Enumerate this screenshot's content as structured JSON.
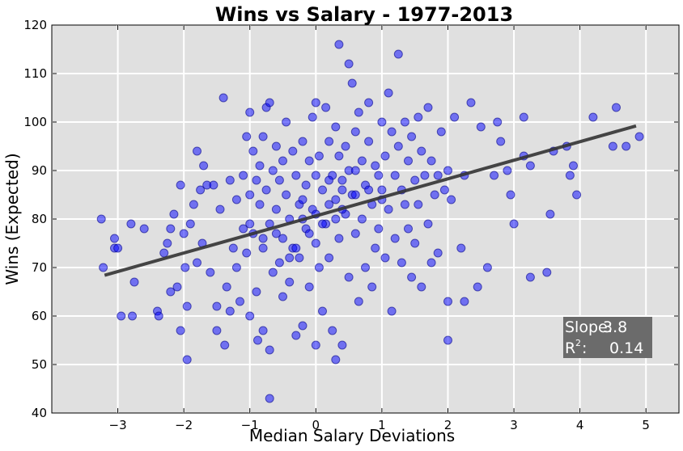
{
  "chart_data": {
    "type": "scatter",
    "title": "Wins vs Salary - 1977-2013",
    "xlabel": "Median Salary Deviations",
    "ylabel": "Wins (Expected)",
    "xlim": [
      -4,
      5.5
    ],
    "ylim": [
      40,
      120
    ],
    "xticks": [
      -3,
      -2,
      -1,
      0,
      1,
      2,
      3,
      4,
      5
    ],
    "yticks": [
      40,
      50,
      60,
      70,
      80,
      90,
      100,
      110,
      120
    ],
    "grid": true,
    "background": "#e0e0e0",
    "point_color": "#0000ff",
    "fit_color": "#333333",
    "annotation": {
      "slope_label": "Slope:",
      "slope_value": "3.8",
      "r2_label": "R",
      "r2_sup": "2",
      "r2_colon": ":",
      "r2_value": "0.14"
    },
    "fit_line": {
      "x": [
        -3.2,
        4.85
      ],
      "y": [
        68.4,
        99.2
      ]
    },
    "points": [
      [
        -3.25,
        80
      ],
      [
        -3.22,
        70
      ],
      [
        -3.05,
        76
      ],
      [
        -3.05,
        74
      ],
      [
        -3.0,
        74
      ],
      [
        -2.95,
        60
      ],
      [
        -2.8,
        79
      ],
      [
        -2.78,
        60
      ],
      [
        -2.75,
        67
      ],
      [
        -2.6,
        78
      ],
      [
        -2.4,
        61
      ],
      [
        -2.38,
        60
      ],
      [
        -2.3,
        73
      ],
      [
        -2.25,
        75
      ],
      [
        -2.2,
        78
      ],
      [
        -2.2,
        65
      ],
      [
        -2.15,
        81
      ],
      [
        -2.1,
        66
      ],
      [
        -2.05,
        87
      ],
      [
        -2.05,
        57
      ],
      [
        -2.0,
        77
      ],
      [
        -1.98,
        70
      ],
      [
        -1.95,
        62
      ],
      [
        -1.95,
        51
      ],
      [
        -1.9,
        79
      ],
      [
        -1.85,
        83
      ],
      [
        -1.8,
        94
      ],
      [
        -1.8,
        71
      ],
      [
        -1.75,
        86
      ],
      [
        -1.72,
        75
      ],
      [
        -1.7,
        91
      ],
      [
        -1.65,
        87
      ],
      [
        -1.6,
        69
      ],
      [
        -1.55,
        87
      ],
      [
        -1.5,
        62
      ],
      [
        -1.5,
        57
      ],
      [
        -1.45,
        82
      ],
      [
        -1.4,
        105
      ],
      [
        -1.38,
        54
      ],
      [
        -1.35,
        66
      ],
      [
        -1.3,
        88
      ],
      [
        -1.3,
        61
      ],
      [
        -1.25,
        74
      ],
      [
        -1.2,
        84
      ],
      [
        -1.2,
        70
      ],
      [
        -1.15,
        63
      ],
      [
        -1.1,
        89
      ],
      [
        -1.1,
        78
      ],
      [
        -1.05,
        97
      ],
      [
        -1.05,
        73
      ],
      [
        -1.0,
        102
      ],
      [
        -1.0,
        85
      ],
      [
        -1.0,
        60
      ],
      [
        -0.95,
        94
      ],
      [
        -0.95,
        77
      ],
      [
        -0.9,
        88
      ],
      [
        -0.9,
        65
      ],
      [
        -0.88,
        55
      ],
      [
        -0.85,
        91
      ],
      [
        -0.85,
        83
      ],
      [
        -0.8,
        97
      ],
      [
        -0.8,
        74
      ],
      [
        -0.8,
        57
      ],
      [
        -0.75,
        103
      ],
      [
        -0.75,
        86
      ],
      [
        -0.7,
        104
      ],
      [
        -0.7,
        79
      ],
      [
        -0.7,
        53
      ],
      [
        -0.7,
        43
      ],
      [
        -0.65,
        90
      ],
      [
        -0.65,
        69
      ],
      [
        -0.6,
        95
      ],
      [
        -0.6,
        82
      ],
      [
        -0.55,
        88
      ],
      [
        -0.55,
        71
      ],
      [
        -0.5,
        92
      ],
      [
        -0.5,
        76
      ],
      [
        -0.5,
        64
      ],
      [
        -0.45,
        100
      ],
      [
        -0.45,
        85
      ],
      [
        -0.4,
        80
      ],
      [
        -0.4,
        67
      ],
      [
        -0.35,
        94
      ],
      [
        -0.35,
        74
      ],
      [
        -0.3,
        89
      ],
      [
        -0.3,
        56
      ],
      [
        -0.25,
        83
      ],
      [
        -0.25,
        72
      ],
      [
        -0.2,
        96
      ],
      [
        -0.2,
        58
      ],
      [
        -0.15,
        87
      ],
      [
        -0.15,
        78
      ],
      [
        -0.1,
        92
      ],
      [
        -0.1,
        66
      ],
      [
        -0.05,
        101
      ],
      [
        -0.05,
        82
      ],
      [
        0.0,
        104
      ],
      [
        0.0,
        75
      ],
      [
        0.0,
        54
      ],
      [
        0.05,
        93
      ],
      [
        0.05,
        70
      ],
      [
        0.1,
        86
      ],
      [
        0.1,
        61
      ],
      [
        0.15,
        103
      ],
      [
        0.15,
        79
      ],
      [
        0.2,
        96
      ],
      [
        0.2,
        72
      ],
      [
        0.25,
        89
      ],
      [
        0.25,
        57
      ],
      [
        0.3,
        99
      ],
      [
        0.3,
        84
      ],
      [
        0.3,
        51
      ],
      [
        0.35,
        116
      ],
      [
        0.35,
        93
      ],
      [
        0.35,
        76
      ],
      [
        0.4,
        88
      ],
      [
        0.4,
        54
      ],
      [
        0.45,
        95
      ],
      [
        0.45,
        81
      ],
      [
        0.5,
        112
      ],
      [
        0.5,
        90
      ],
      [
        0.5,
        68
      ],
      [
        0.55,
        108
      ],
      [
        0.55,
        85
      ],
      [
        0.6,
        98
      ],
      [
        0.6,
        77
      ],
      [
        0.65,
        102
      ],
      [
        0.65,
        63
      ],
      [
        0.7,
        92
      ],
      [
        0.7,
        80
      ],
      [
        0.75,
        87
      ],
      [
        0.75,
        70
      ],
      [
        0.8,
        104
      ],
      [
        0.8,
        96
      ],
      [
        0.85,
        83
      ],
      [
        0.85,
        66
      ],
      [
        0.9,
        91
      ],
      [
        0.9,
        74
      ],
      [
        0.95,
        89
      ],
      [
        0.95,
        78
      ],
      [
        1.0,
        100
      ],
      [
        1.0,
        86
      ],
      [
        1.05,
        93
      ],
      [
        1.05,
        72
      ],
      [
        1.1,
        106
      ],
      [
        1.1,
        82
      ],
      [
        1.15,
        98
      ],
      [
        1.15,
        61
      ],
      [
        1.2,
        89
      ],
      [
        1.2,
        76
      ],
      [
        1.25,
        114
      ],
      [
        1.25,
        95
      ],
      [
        1.3,
        86
      ],
      [
        1.3,
        71
      ],
      [
        1.35,
        100
      ],
      [
        1.35,
        83
      ],
      [
        1.4,
        92
      ],
      [
        1.4,
        78
      ],
      [
        1.45,
        97
      ],
      [
        1.45,
        68
      ],
      [
        1.5,
        88
      ],
      [
        1.5,
        75
      ],
      [
        1.55,
        101
      ],
      [
        1.55,
        83
      ],
      [
        1.6,
        94
      ],
      [
        1.6,
        66
      ],
      [
        1.65,
        89
      ],
      [
        1.7,
        103
      ],
      [
        1.7,
        79
      ],
      [
        1.75,
        92
      ],
      [
        1.75,
        71
      ],
      [
        1.8,
        85
      ],
      [
        1.85,
        89
      ],
      [
        1.85,
        73
      ],
      [
        1.9,
        98
      ],
      [
        1.95,
        86
      ],
      [
        2.0,
        90
      ],
      [
        2.0,
        63
      ],
      [
        2.0,
        55
      ],
      [
        2.05,
        84
      ],
      [
        2.1,
        101
      ],
      [
        2.2,
        74
      ],
      [
        2.25,
        63
      ],
      [
        2.25,
        89
      ],
      [
        2.35,
        104
      ],
      [
        2.45,
        66
      ],
      [
        2.5,
        99
      ],
      [
        2.6,
        70
      ],
      [
        2.7,
        89
      ],
      [
        2.75,
        100
      ],
      [
        2.8,
        96
      ],
      [
        2.9,
        90
      ],
      [
        2.95,
        85
      ],
      [
        3.0,
        79
      ],
      [
        3.15,
        101
      ],
      [
        3.15,
        93
      ],
      [
        3.25,
        91
      ],
      [
        3.25,
        68
      ],
      [
        3.5,
        69
      ],
      [
        3.55,
        81
      ],
      [
        3.6,
        94
      ],
      [
        3.8,
        95
      ],
      [
        3.85,
        89
      ],
      [
        3.9,
        91
      ],
      [
        3.95,
        85
      ],
      [
        4.2,
        101
      ],
      [
        4.55,
        103
      ],
      [
        4.5,
        95
      ],
      [
        4.7,
        95
      ],
      [
        4.9,
        97
      ],
      [
        -0.3,
        74
      ],
      [
        -0.2,
        80
      ],
      [
        -0.1,
        77
      ],
      [
        0.0,
        81
      ],
      [
        0.1,
        79
      ],
      [
        0.2,
        83
      ],
      [
        0.3,
        80
      ],
      [
        0.4,
        82
      ],
      [
        -0.6,
        77
      ],
      [
        -0.4,
        72
      ],
      [
        0.6,
        85
      ],
      [
        0.8,
        86
      ],
      [
        1.0,
        84
      ],
      [
        -0.8,
        76
      ],
      [
        -1.0,
        79
      ],
      [
        0.2,
        88
      ],
      [
        0.4,
        86
      ],
      [
        -0.2,
        84
      ],
      [
        0.0,
        89
      ],
      [
        0.6,
        90
      ]
    ]
  }
}
